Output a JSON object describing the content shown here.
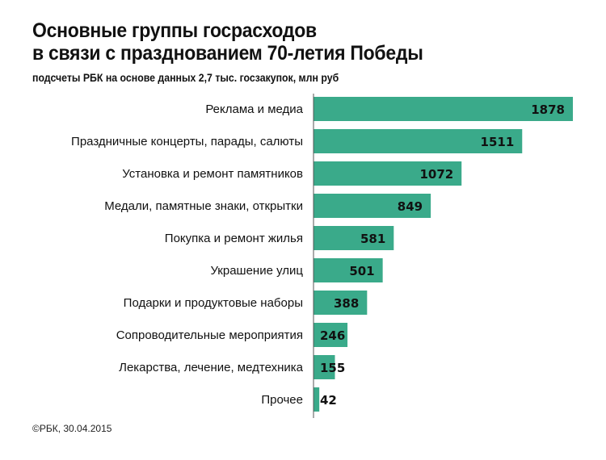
{
  "chart_data": {
    "type": "bar",
    "orientation": "horizontal",
    "title": "Основные группы госрасходов в связи с празднованием 70-летия Победы",
    "title_lines": [
      "Основные группы госрасходов",
      "в связи с празднованием 70-летия Победы"
    ],
    "subtitle": "подсчеты РБК на основе данных 2,7 тыс. госзакупок,  млн руб",
    "categories": [
      "Реклама и медиа",
      "Праздничные концерты, парады, салюты",
      "Установка и ремонт памятников",
      "Медали, памятные знаки, открытки",
      "Покупка и ремонт жилья",
      "Украшение улиц",
      "Подарки и продуктовые наборы",
      "Сопроводительные мероприятия",
      "Лекарства, лечение, медтехника",
      "Прочее"
    ],
    "values": [
      1878,
      1511,
      1072,
      849,
      581,
      501,
      388,
      246,
      155,
      42
    ],
    "xlim": [
      0,
      1878
    ],
    "grid": false,
    "bar_color": "#3aaa8a",
    "source": "©РБК, 30.04.2015"
  }
}
